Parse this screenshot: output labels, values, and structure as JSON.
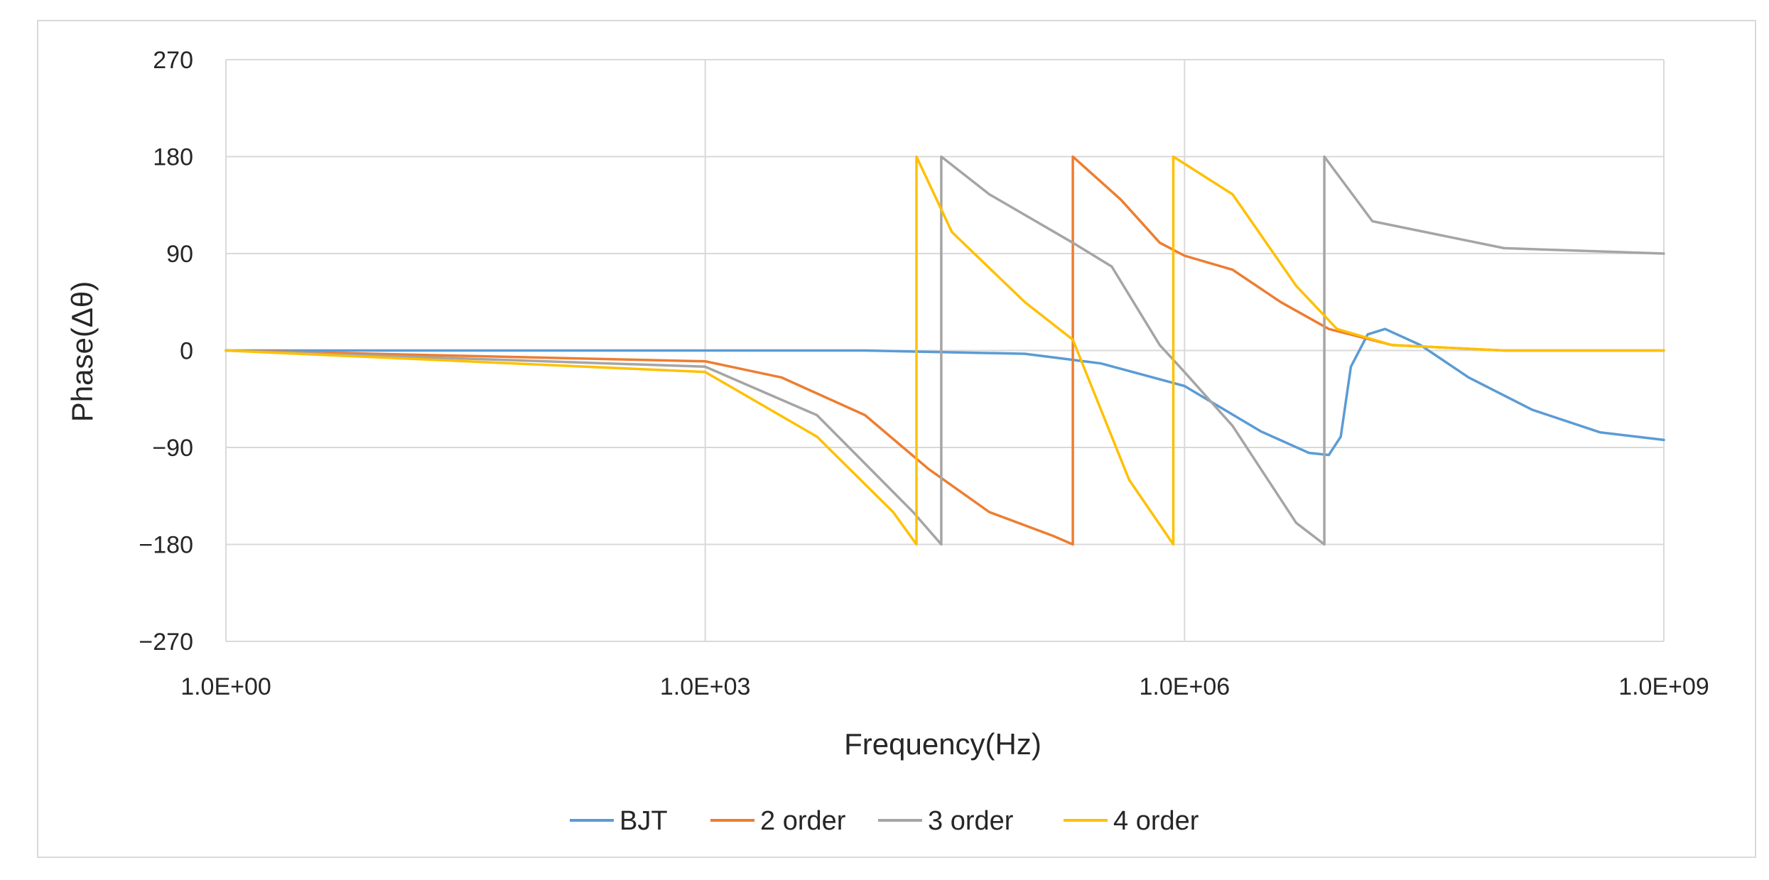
{
  "chart_data": {
    "type": "line",
    "title": "",
    "xlabel": "Frequency(Hz)",
    "ylabel": "Phase(Δθ)",
    "x_scale": "log",
    "xlim": [
      1,
      1000000000
    ],
    "ylim": [
      -270,
      270
    ],
    "x_ticks": [
      {
        "value": 1,
        "label": "1.0E+00"
      },
      {
        "value": 1000,
        "label": "1.0E+03"
      },
      {
        "value": 1000000,
        "label": "1.0E+06"
      },
      {
        "value": 1000000000,
        "label": "1.0E+09"
      }
    ],
    "y_ticks": [
      {
        "value": 270,
        "label": "270"
      },
      {
        "value": 180,
        "label": "180"
      },
      {
        "value": 90,
        "label": "90"
      },
      {
        "value": 0,
        "label": "0"
      },
      {
        "value": -90,
        "label": "−90"
      },
      {
        "value": -180,
        "label": "−180"
      },
      {
        "value": -270,
        "label": "−270"
      }
    ],
    "grid": true,
    "legend_position": "bottom",
    "series": [
      {
        "name": "BJT",
        "color": "#5b9bd5",
        "points": [
          [
            1,
            0
          ],
          [
            1000,
            0
          ],
          [
            10000,
            0
          ],
          [
            100000,
            -3
          ],
          [
            300000,
            -12
          ],
          [
            1000000,
            -33
          ],
          [
            3000000,
            -75
          ],
          [
            6000000,
            -95
          ],
          [
            8000000,
            -97
          ],
          [
            9500000,
            -80
          ],
          [
            11000000,
            -15
          ],
          [
            14000000,
            15
          ],
          [
            18000000,
            20
          ],
          [
            30000000,
            5
          ],
          [
            60000000,
            -25
          ],
          [
            150000000,
            -55
          ],
          [
            400000000,
            -76
          ],
          [
            1000000000,
            -83
          ]
        ]
      },
      {
        "name": "2 order",
        "color": "#ed7d31",
        "points": [
          [
            1,
            0
          ],
          [
            1000,
            -10
          ],
          [
            3000,
            -25
          ],
          [
            10000,
            -60
          ],
          [
            25000,
            -110
          ],
          [
            60000,
            -150
          ],
          [
            150000,
            -172
          ],
          [
            200000,
            -180
          ],
          [
            200000,
            180
          ],
          [
            400000,
            140
          ],
          [
            700000,
            100
          ],
          [
            1000000,
            88
          ],
          [
            2000000,
            75
          ],
          [
            4000000,
            45
          ],
          [
            8000000,
            20
          ],
          [
            20000000,
            5
          ],
          [
            100000000,
            0
          ],
          [
            1000000000,
            0
          ]
        ]
      },
      {
        "name": "3 order",
        "color": "#a5a5a5",
        "points": [
          [
            1,
            0
          ],
          [
            1000,
            -15
          ],
          [
            5000,
            -60
          ],
          [
            20000,
            -150
          ],
          [
            30000,
            -180
          ],
          [
            30000,
            180
          ],
          [
            60000,
            145
          ],
          [
            200000,
            100
          ],
          [
            350000,
            78
          ],
          [
            700000,
            5
          ],
          [
            1000000,
            -20
          ],
          [
            2000000,
            -70
          ],
          [
            5000000,
            -160
          ],
          [
            7500000,
            -180
          ],
          [
            7500000,
            180
          ],
          [
            15000000,
            120
          ],
          [
            100000000,
            95
          ],
          [
            1000000000,
            90
          ]
        ]
      },
      {
        "name": "4 order",
        "color": "#ffc000",
        "points": [
          [
            1,
            0
          ],
          [
            1000,
            -20
          ],
          [
            5000,
            -80
          ],
          [
            15000,
            -150
          ],
          [
            21000,
            -180
          ],
          [
            21000,
            180
          ],
          [
            35000,
            110
          ],
          [
            100000,
            45
          ],
          [
            200000,
            10
          ],
          [
            450000,
            -120
          ],
          [
            850000,
            -180
          ],
          [
            850000,
            180
          ],
          [
            2000000,
            145
          ],
          [
            5000000,
            60
          ],
          [
            9000000,
            20
          ],
          [
            20000000,
            5
          ],
          [
            100000000,
            0
          ],
          [
            1000000000,
            0
          ]
        ]
      }
    ]
  }
}
